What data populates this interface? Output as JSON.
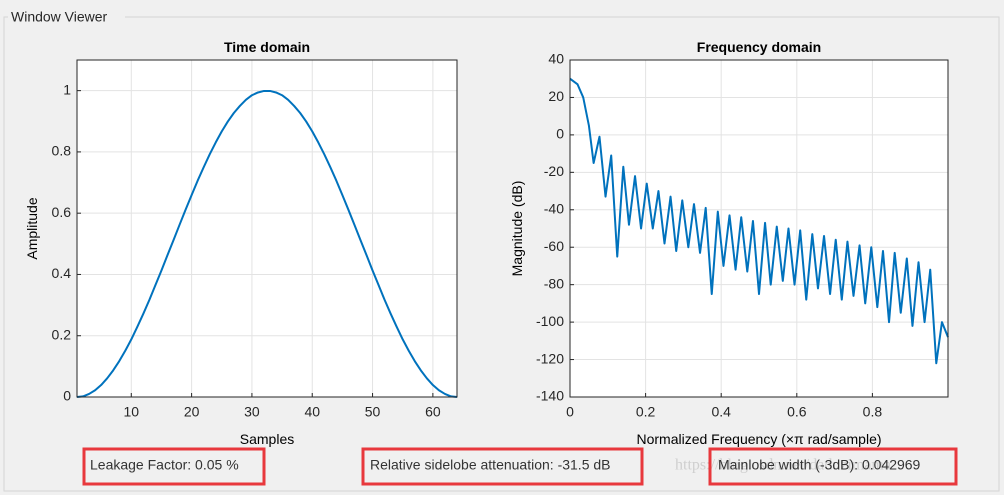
{
  "panel_title": "Window Viewer",
  "watermark": "https://blog.csdn.net/daduzimama",
  "stats": [
    "Leakage Factor: 0.05 %",
    "Relative sidelobe attenuation: -31.5 dB",
    "Mainlobe width (-3dB): 0.042969"
  ],
  "chart_data": [
    {
      "type": "line",
      "title": "Time domain",
      "x_label": "Samples",
      "y_label": "Amplitude",
      "color": "#0072bd",
      "grid": true,
      "xlim": [
        1,
        64
      ],
      "xticks": [
        10,
        20,
        30,
        40,
        50,
        60
      ],
      "ylim": [
        0,
        1.1
      ],
      "yticks": [
        0,
        0.2,
        0.4,
        0.6,
        0.8,
        1
      ],
      "x": [
        1,
        2,
        3,
        4,
        5,
        6,
        7,
        8,
        9,
        10,
        11,
        12,
        13,
        14,
        15,
        16,
        17,
        18,
        19,
        20,
        21,
        22,
        23,
        24,
        25,
        26,
        27,
        28,
        29,
        30,
        31,
        32,
        33,
        34,
        35,
        36,
        37,
        38,
        39,
        40,
        41,
        42,
        43,
        44,
        45,
        46,
        47,
        48,
        49,
        50,
        51,
        52,
        53,
        54,
        55,
        56,
        57,
        58,
        59,
        60,
        61,
        62,
        63,
        64
      ],
      "values": [
        0,
        0.002,
        0.01,
        0.022,
        0.039,
        0.061,
        0.087,
        0.117,
        0.151,
        0.188,
        0.229,
        0.272,
        0.317,
        0.365,
        0.413,
        0.463,
        0.512,
        0.562,
        0.611,
        0.659,
        0.706,
        0.75,
        0.792,
        0.831,
        0.867,
        0.899,
        0.927,
        0.95,
        0.97,
        0.985,
        0.994,
        0.999,
        0.999,
        0.994,
        0.985,
        0.97,
        0.95,
        0.927,
        0.899,
        0.867,
        0.831,
        0.792,
        0.75,
        0.706,
        0.659,
        0.611,
        0.562,
        0.512,
        0.463,
        0.413,
        0.365,
        0.317,
        0.272,
        0.229,
        0.188,
        0.151,
        0.117,
        0.087,
        0.061,
        0.039,
        0.022,
        0.01,
        0.002,
        0
      ]
    },
    {
      "type": "line",
      "title": "Frequency domain",
      "x_label": "Normalized Frequency  (×π rad/sample)",
      "y_label": "Magnitude (dB)",
      "color": "#0072bd",
      "grid": true,
      "xlim": [
        0,
        1
      ],
      "xticks": [
        0,
        0.2,
        0.4,
        0.6,
        0.8
      ],
      "ylim": [
        -140,
        40
      ],
      "yticks": [
        -140,
        -120,
        -100,
        -80,
        -60,
        -40,
        -20,
        0,
        20,
        40
      ],
      "x": [
        0,
        0.02,
        0.035,
        0.05,
        0.0625,
        0.078,
        0.094,
        0.109,
        0.125,
        0.141,
        0.156,
        0.172,
        0.188,
        0.203,
        0.219,
        0.234,
        0.25,
        0.266,
        0.281,
        0.297,
        0.313,
        0.328,
        0.344,
        0.359,
        0.375,
        0.391,
        0.406,
        0.422,
        0.438,
        0.453,
        0.469,
        0.484,
        0.5,
        0.516,
        0.531,
        0.547,
        0.563,
        0.578,
        0.594,
        0.609,
        0.625,
        0.641,
        0.656,
        0.672,
        0.688,
        0.703,
        0.719,
        0.734,
        0.75,
        0.766,
        0.781,
        0.797,
        0.813,
        0.828,
        0.844,
        0.859,
        0.875,
        0.891,
        0.906,
        0.922,
        0.938,
        0.953,
        0.969,
        0.984,
        1
      ],
      "values": [
        30,
        27,
        20,
        5,
        -15,
        -1,
        -33,
        -11,
        -65,
        -17,
        -48,
        -22,
        -50,
        -26,
        -50,
        -30,
        -58,
        -33,
        -62,
        -35,
        -60,
        -37,
        -63,
        -39,
        -85,
        -41,
        -70,
        -43,
        -72,
        -44,
        -73,
        -46,
        -85,
        -47,
        -80,
        -49,
        -78,
        -50,
        -80,
        -51,
        -88,
        -53,
        -82,
        -54,
        -85,
        -56,
        -88,
        -57,
        -86,
        -59,
        -90,
        -60,
        -92,
        -62,
        -100,
        -63,
        -95,
        -66,
        -102,
        -68,
        -100,
        -72,
        -122,
        -100,
        -108
      ]
    }
  ]
}
